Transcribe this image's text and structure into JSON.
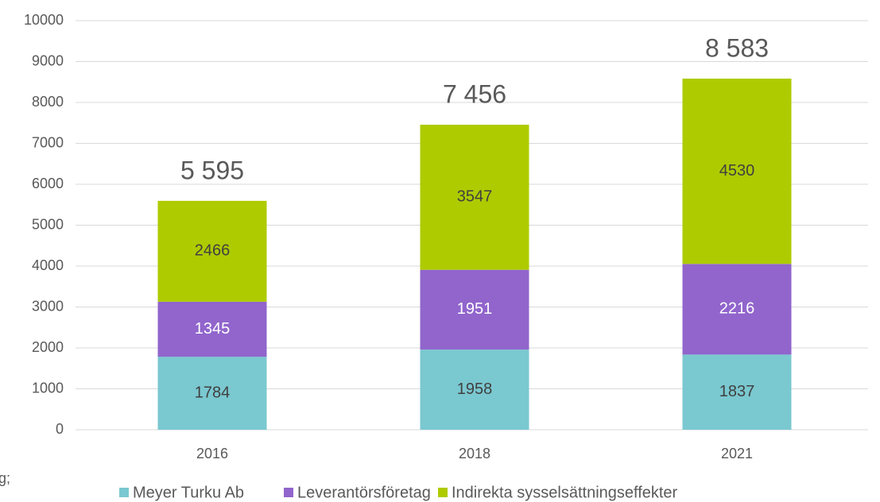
{
  "chart_data": {
    "type": "stacked_bar",
    "categories": [
      "2016",
      "2018",
      "2021"
    ],
    "series": [
      {
        "name": "Meyer Turku Ab",
        "color": "#7ac8d0",
        "label_color": "#404040",
        "values": [
          1784,
          1958,
          1837
        ]
      },
      {
        "name": "Leverantörsföretag",
        "color": "#9165cc",
        "label_color": "#ffffff",
        "values": [
          1345,
          1951,
          2216
        ]
      },
      {
        "name": "Indirekta sysselsättningseffekter",
        "color": "#aecb00",
        "label_color": "#404040",
        "values": [
          2466,
          3547,
          4530
        ]
      }
    ],
    "totals": {
      "values": [
        5595,
        7456,
        8583
      ],
      "value_labels": [
        "5 595",
        "7 456",
        "8 583"
      ]
    },
    "ylim": [
      0,
      10000
    ],
    "yticks": [
      0,
      1000,
      2000,
      3000,
      4000,
      5000,
      6000,
      7000,
      8000,
      9000,
      10000
    ],
    "grid": true,
    "legend": "bottom",
    "annotation": "g;"
  }
}
